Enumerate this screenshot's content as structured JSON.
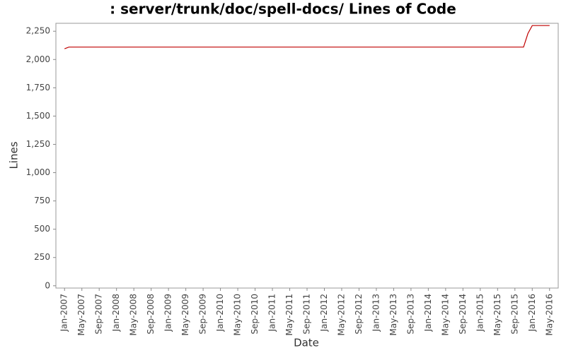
{
  "chart_data": {
    "type": "line",
    "title": ": server/trunk/doc/spell-docs/ Lines of Code",
    "xlabel": "Date",
    "ylabel": "Lines",
    "x": [
      "Jan-2007",
      "Feb-2007",
      "Nov-2015",
      "Dec-2015",
      "Jan-2016",
      "May-2016"
    ],
    "series": [
      {
        "name": "Lines",
        "color": "#c00000",
        "values": [
          2095,
          2110,
          2110,
          2230,
          2300,
          2300
        ]
      }
    ],
    "xlim": [
      "Nov-2006",
      "Jul-2016"
    ],
    "xticks": [
      "Jan-2007",
      "May-2007",
      "Sep-2007",
      "Jan-2008",
      "May-2008",
      "Sep-2008",
      "Jan-2009",
      "May-2009",
      "Sep-2009",
      "Jan-2010",
      "May-2010",
      "Sep-2010",
      "Jan-2011",
      "May-2011",
      "Sep-2011",
      "Jan-2012",
      "May-2012",
      "Sep-2012",
      "Jan-2013",
      "May-2013",
      "Sep-2013",
      "Jan-2014",
      "May-2014",
      "Sep-2014",
      "Jan-2015",
      "May-2015",
      "Sep-2015",
      "Jan-2016",
      "May-2016"
    ],
    "ylim": [
      -20,
      2320
    ],
    "yticks": [
      0,
      250,
      500,
      750,
      {
        "value": 1000,
        "label": "1,000"
      },
      {
        "value": 1250,
        "label": "1,250"
      },
      {
        "value": 1500,
        "label": "1,500"
      },
      {
        "value": 1750,
        "label": "1,750"
      },
      {
        "value": 2000,
        "label": "2,000"
      },
      {
        "value": 2250,
        "label": "2,250"
      }
    ],
    "grid": false
  }
}
